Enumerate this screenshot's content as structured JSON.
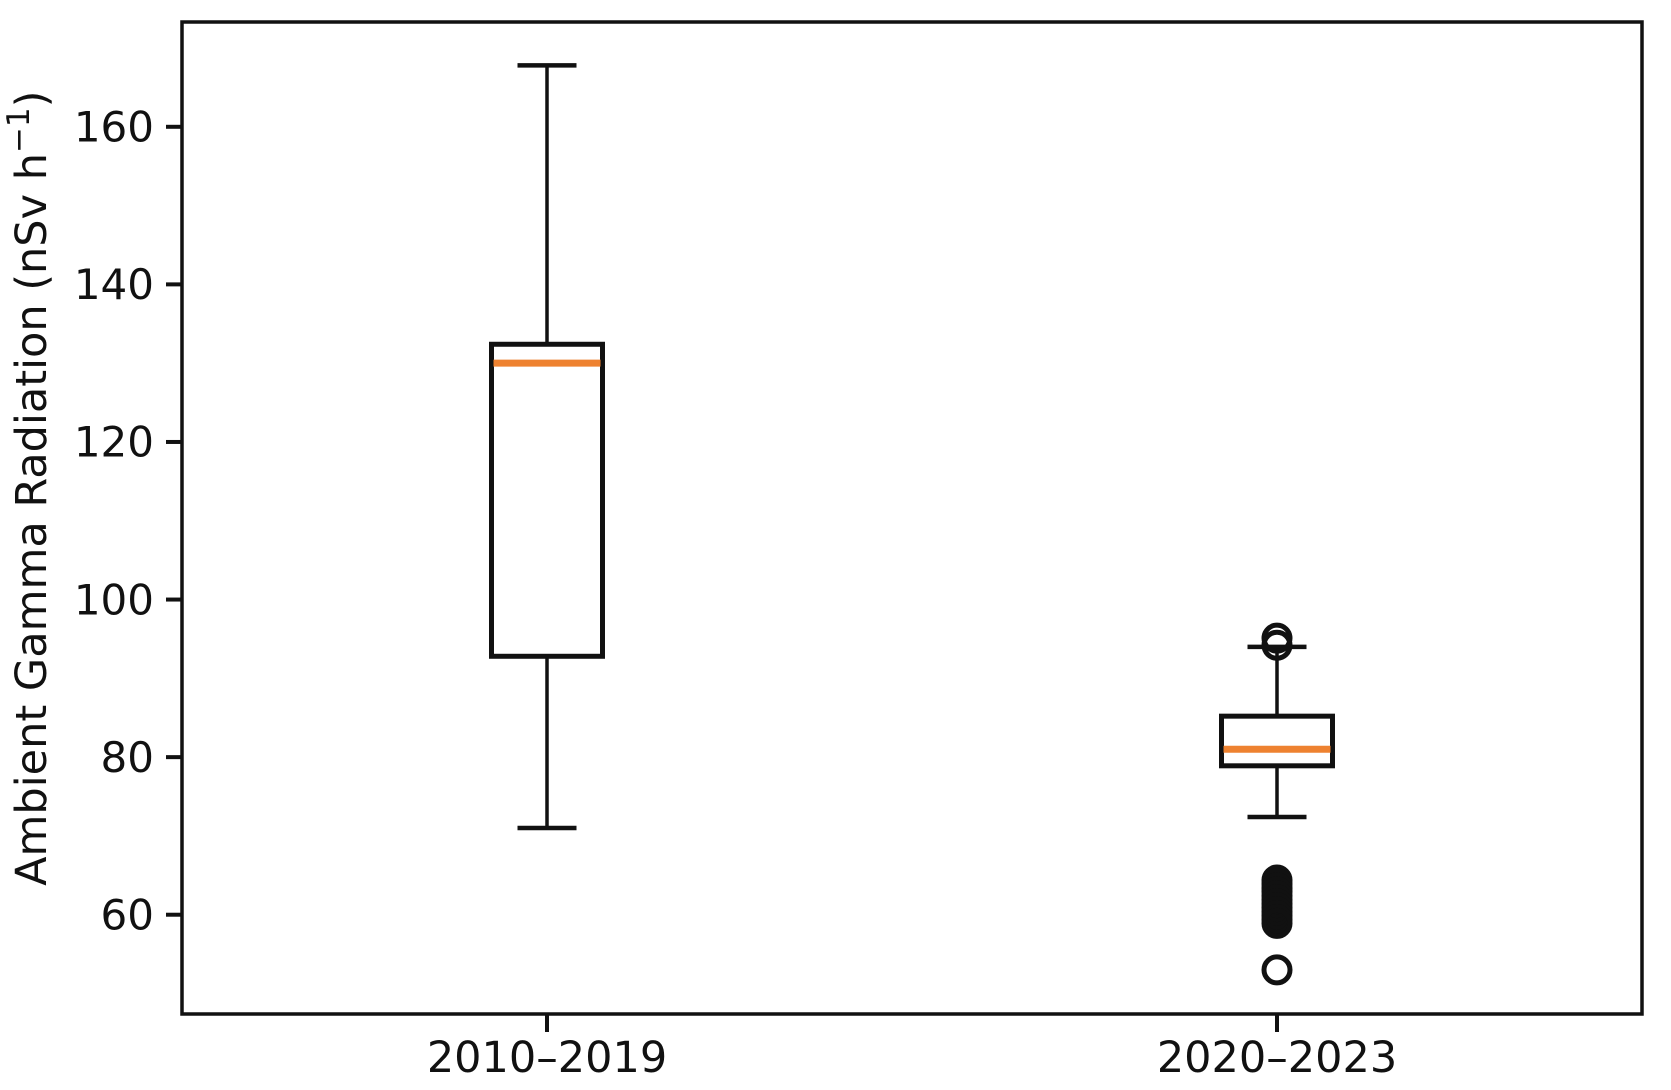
{
  "figure": {
    "background": "#ffffff",
    "axis_color": "#111111",
    "text_color": "#111111"
  },
  "chart_data": {
    "type": "boxplot",
    "title": "",
    "xlabel": "",
    "ylabel": "Ambient Gamma Radiation (nSv h⁻¹)",
    "ylabel_parts": {
      "main": "Ambient Gamma Radiation (nSv h",
      "superscript": "−1",
      "close": ")"
    },
    "categories": [
      "2010–2019",
      "2020–2023"
    ],
    "y_ticks": [
      60,
      80,
      100,
      120,
      140,
      160
    ],
    "ylim": [
      47.4,
      173.3
    ],
    "grid": false,
    "legend": "none",
    "median_color": "#ee8230",
    "box_edge_color": "#111111",
    "box_fill_color": "#ffffff",
    "series": [
      {
        "label": "2010–2019",
        "whisker_low": 71,
        "q1": 92.8,
        "median": 130,
        "q3": 132.4,
        "whisker_high": 167.8,
        "outliers": []
      },
      {
        "label": "2020–2023",
        "whisker_low": 72.4,
        "q1": 78.9,
        "median": 81,
        "q3": 85.2,
        "whisker_high": 94,
        "outliers": [
          95.1,
          94.2,
          64.4,
          63.9,
          63.4,
          62.9,
          62.4,
          61.9,
          61.4,
          60.9,
          60.4,
          59.9,
          59.4,
          58.9,
          53
        ]
      }
    ]
  }
}
